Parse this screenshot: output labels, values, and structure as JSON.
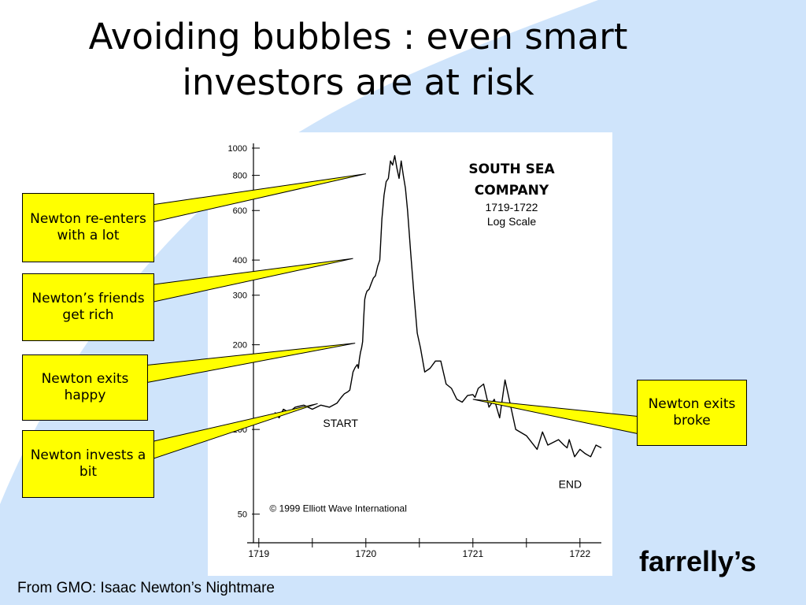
{
  "slide": {
    "title_lines": [
      "Avoiding bubbles : even smart",
      "investors are at risk"
    ],
    "source": "From GMO: Isaac Newton’s Nightmare",
    "brand": "farrelly’s",
    "background_color": "#ffffff",
    "accent_color": "#cfe4fb",
    "callout_color": "#ffff00"
  },
  "callouts": [
    {
      "text": "Newton re-enters with a lot",
      "x": 1720.0,
      "y": 800
    },
    {
      "text": "Newton’s friends get rich",
      "x": 1719.88,
      "y": 400
    },
    {
      "text": "Newton exits happy",
      "x": 1719.9,
      "y": 200
    },
    {
      "text": "Newton invests a bit",
      "x": 1719.55,
      "y": 122
    },
    {
      "text": "Newton exits broke",
      "x": 1721.0,
      "y": 128
    }
  ],
  "chart_data": {
    "type": "line",
    "title": "SOUTH SEA COMPANY",
    "subtitle_lines": [
      "1719-1722",
      "Log Scale"
    ],
    "y_scale": "log",
    "ylim": [
      45,
      1000
    ],
    "xlim": [
      1718.95,
      1722.2
    ],
    "y_ticks": [
      1000,
      800,
      600,
      400,
      300,
      200,
      100,
      50
    ],
    "y_tick_labels": [
      "1000",
      "800",
      "600",
      "400",
      "300",
      "200",
      "100",
      "50"
    ],
    "x_ticks": [
      1719,
      1720,
      1721,
      1722
    ],
    "x_tick_labels": [
      "1719",
      "1720",
      "1721",
      "1722"
    ],
    "annotations": [
      {
        "text": "START",
        "x": 1719.6,
        "y": 102
      },
      {
        "text": "END",
        "x": 1721.8,
        "y": 62
      },
      {
        "text": "© 1999 Elliott Wave International",
        "x": 1719.1,
        "y": 51
      }
    ],
    "series": [
      {
        "color": "#000000",
        "x": [
          1719.15,
          1719.19,
          1719.23,
          1719.28,
          1719.34,
          1719.42,
          1719.5,
          1719.58,
          1719.66,
          1719.73,
          1719.77,
          1719.8,
          1719.83,
          1719.85,
          1719.86,
          1719.88,
          1719.9,
          1719.92,
          1719.93,
          1719.94,
          1719.95,
          1719.96,
          1719.97,
          1719.98,
          1719.99,
          1720.0,
          1720.01,
          1720.03,
          1720.05,
          1720.07,
          1720.09,
          1720.11,
          1720.13,
          1720.15,
          1720.17,
          1720.19,
          1720.21,
          1720.23,
          1720.25,
          1720.27,
          1720.29,
          1720.31,
          1720.33,
          1720.35,
          1720.37,
          1720.39,
          1720.42,
          1720.45,
          1720.48,
          1720.51,
          1720.55,
          1720.6,
          1720.65,
          1720.7,
          1720.75,
          1720.8,
          1720.85,
          1720.9,
          1720.95,
          1721.0,
          1721.02,
          1721.05,
          1721.1,
          1721.15,
          1721.2,
          1721.25,
          1721.3,
          1721.4,
          1721.5,
          1721.6,
          1721.65,
          1721.7,
          1721.8,
          1721.85,
          1721.88,
          1721.9,
          1721.95,
          1722.0,
          1722.05,
          1722.1,
          1722.15,
          1722.2
        ],
        "y": [
          115,
          110,
          118,
          115,
          120,
          122,
          118,
          122,
          120,
          124,
          130,
          134,
          136,
          138,
          145,
          160,
          166,
          170,
          165,
          178,
          188,
          195,
          205,
          250,
          290,
          302,
          310,
          315,
          330,
          345,
          352,
          380,
          400,
          560,
          680,
          760,
          780,
          900,
          870,
          940,
          850,
          780,
          900,
          800,
          720,
          600,
          420,
          300,
          220,
          195,
          160,
          165,
          175,
          175,
          145,
          140,
          128,
          125,
          132,
          133,
          130,
          140,
          145,
          120,
          128,
          110,
          150,
          100,
          95,
          85,
          98,
          88,
          92,
          88,
          86,
          92,
          80,
          85,
          82,
          80,
          88,
          86
        ]
      }
    ]
  }
}
